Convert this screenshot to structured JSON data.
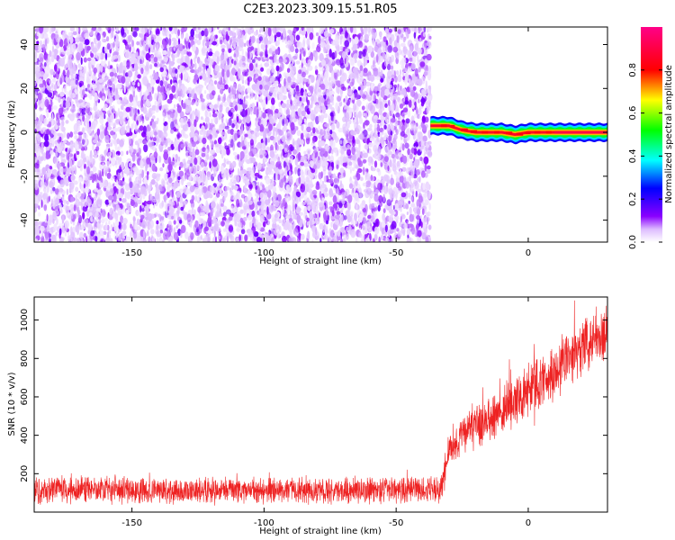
{
  "title": "C2E3.2023.309.15.51.R05",
  "chart_data": [
    {
      "type": "heatmap",
      "xlabel": "Height of straight line (km)",
      "ylabel": "Frequency (Hz)",
      "xlim": [
        -187,
        30
      ],
      "ylim": [
        -50,
        48
      ],
      "xticks": [
        -150,
        -100,
        -50,
        0
      ],
      "yticks": [
        -40,
        -20,
        0,
        20,
        40
      ],
      "colorbar": {
        "label": "Normalized spectral amplitude",
        "range": [
          0.0,
          1.0
        ],
        "ticks": [
          "0.0",
          "0.2",
          "0.4",
          "0.6",
          "0.8"
        ],
        "tick_values": [
          0.0,
          0.2,
          0.4,
          0.6,
          0.8
        ],
        "colormap": "rainbow (white→violet→blue→cyan→green→yellow→red→magenta)"
      },
      "regions": [
        {
          "name": "noise",
          "x_range": [
            -187,
            -37
          ],
          "freq_range": [
            -50,
            48
          ],
          "amplitude_range": [
            0.0,
            0.15
          ]
        },
        {
          "name": "signal",
          "x_range": [
            -37,
            30
          ],
          "center_freq_hz": [
            3,
            0
          ],
          "amplitude_range": [
            0.3,
            1.0
          ]
        }
      ],
      "signal_band": {
        "x": [
          -37,
          -30,
          -25,
          -20,
          -15,
          -10,
          -5,
          0,
          5,
          10,
          15,
          20,
          25,
          30
        ],
        "freq": [
          3,
          3,
          1,
          0,
          0,
          0,
          -1,
          0,
          0,
          0,
          0,
          0,
          0,
          0
        ]
      }
    },
    {
      "type": "line",
      "xlabel": "Height of straight line (km)",
      "ylabel": "SNR (10 * v/v)",
      "xlim": [
        -187,
        30
      ],
      "ylim": [
        0,
        1120
      ],
      "xticks": [
        -150,
        -100,
        -50,
        0
      ],
      "yticks": [
        200,
        400,
        600,
        800,
        1000
      ],
      "series": [
        {
          "color": "#ee2222",
          "x": [
            -187,
            -175,
            -150,
            -125,
            -100,
            -75,
            -50,
            -40,
            -33,
            -30,
            -25,
            -20,
            -15,
            -10,
            -5,
            0,
            5,
            10,
            15,
            20,
            25,
            30
          ],
          "y": [
            110,
            115,
            112,
            110,
            113,
            112,
            115,
            118,
            120,
            320,
            390,
            450,
            480,
            530,
            580,
            620,
            680,
            730,
            800,
            850,
            900,
            920
          ],
          "noise_amplitude": [
            80,
            80,
            80,
            80,
            80,
            80,
            80,
            80,
            90,
            120,
            130,
            140,
            150,
            150,
            150,
            150,
            160,
            160,
            170,
            170,
            170,
            170
          ]
        }
      ]
    }
  ]
}
